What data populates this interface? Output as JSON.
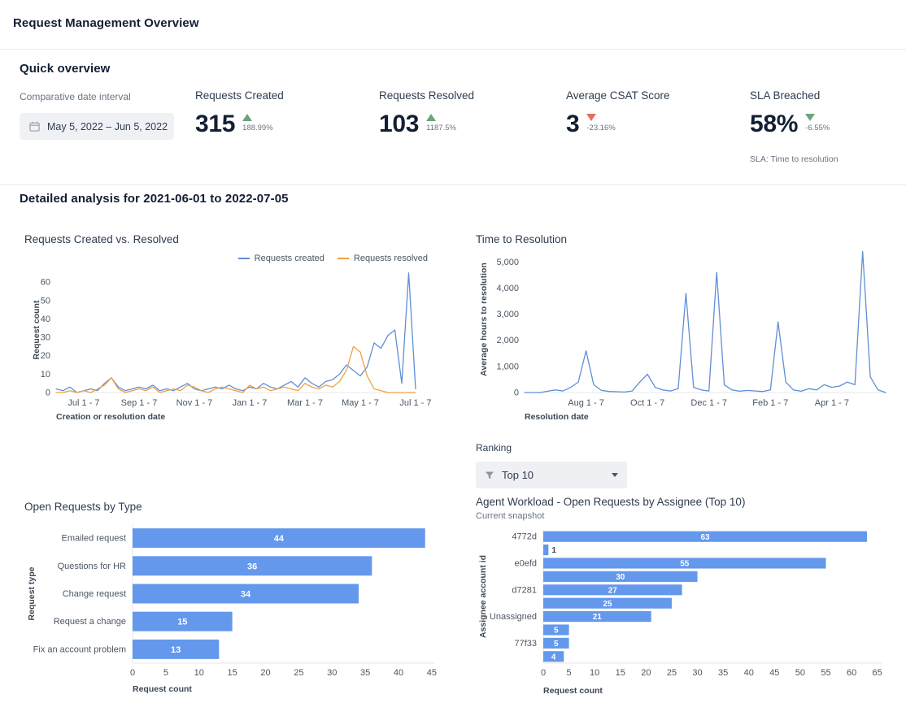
{
  "page": {
    "title": "Request Management Overview"
  },
  "quick_overview": {
    "heading": "Quick overview",
    "date_interval": {
      "label": "Comparative date interval",
      "value": "May 5, 2022  –  Jun 5, 2022"
    },
    "kpis": [
      {
        "label": "Requests Created",
        "value": "315",
        "delta": "188.99%",
        "direction": "up",
        "tone": "positive"
      },
      {
        "label": "Requests Resolved",
        "value": "103",
        "delta": "1187.5%",
        "direction": "up",
        "tone": "positive"
      },
      {
        "label": "Average CSAT Score",
        "value": "3",
        "delta": "-23.16%",
        "direction": "down",
        "tone": "negative"
      },
      {
        "label": "SLA Breached",
        "value": "58%",
        "delta": "-6.55%",
        "direction": "down",
        "tone": "positive",
        "footnote": "SLA: Time to resolution"
      }
    ]
  },
  "detailed": {
    "heading": "Detailed analysis for 2021-06-01 to 2022-07-05"
  },
  "ranking": {
    "label": "Ranking",
    "dropdown_value": "Top 10"
  },
  "colors": {
    "series_blue": "#5f8fd6",
    "series_orange": "#f0a143",
    "bar_blue": "#6398ec",
    "positive_green": "#6ba57b",
    "negative_red": "#e2705c"
  },
  "chart_data": [
    {
      "type": "line",
      "title": "Requests Created vs. Resolved",
      "xlabel": "Creation or resolution date",
      "ylabel": "Request count",
      "ylim": [
        0,
        68
      ],
      "yticks": [
        0,
        10,
        20,
        30,
        40,
        50,
        60
      ],
      "xticks": [
        {
          "i": 4,
          "label": "Jul 1 - 7"
        },
        {
          "i": 12,
          "label": "Sep 1 - 7"
        },
        {
          "i": 20,
          "label": "Nov 1 - 7"
        },
        {
          "i": 28,
          "label": "Jan 1 - 7"
        },
        {
          "i": 36,
          "label": "Mar 1 - 7"
        },
        {
          "i": 44,
          "label": "May 1 - 7"
        },
        {
          "i": 52,
          "label": "Jul 1 - 7"
        }
      ],
      "legend_position": "top-right",
      "grid": false,
      "series": [
        {
          "name": "Requests created",
          "color": "#5f8fd6",
          "values": [
            2,
            1,
            3,
            0,
            1,
            2,
            1,
            5,
            8,
            3,
            1,
            2,
            3,
            2,
            4,
            1,
            2,
            1,
            3,
            5,
            2,
            1,
            2,
            3,
            2,
            4,
            2,
            1,
            3,
            2,
            5,
            3,
            2,
            4,
            6,
            3,
            8,
            5,
            3,
            6,
            7,
            10,
            15,
            12,
            9,
            14,
            27,
            24,
            31,
            34,
            5,
            65,
            2
          ]
        },
        {
          "name": "Requests resolved",
          "color": "#f0a143",
          "values": [
            0,
            0,
            1,
            0,
            1,
            0,
            2,
            4,
            8,
            2,
            0,
            1,
            2,
            1,
            3,
            0,
            1,
            2,
            1,
            4,
            3,
            1,
            0,
            2,
            3,
            2,
            1,
            0,
            4,
            2,
            3,
            1,
            2,
            3,
            2,
            1,
            5,
            3,
            2,
            4,
            3,
            6,
            12,
            25,
            22,
            9,
            2,
            1,
            0,
            0,
            0,
            0,
            0
          ]
        }
      ]
    },
    {
      "type": "line",
      "title": "Time to Resolution",
      "xlabel": "Resolution date",
      "ylabel": "Average hours to resolution",
      "ylim": [
        0,
        5600
      ],
      "yticks": [
        0,
        1000,
        2000,
        3000,
        4000,
        5000
      ],
      "xticks": [
        {
          "i": 8,
          "label": "Aug 1 - 7"
        },
        {
          "i": 16,
          "label": "Oct 1 - 7"
        },
        {
          "i": 24,
          "label": "Dec 1 - 7"
        },
        {
          "i": 32,
          "label": "Feb 1 - 7"
        },
        {
          "i": 40,
          "label": "Apr 1 - 7"
        }
      ],
      "grid": false,
      "series": [
        {
          "name": "Average hours to resolution",
          "color": "#5f8fd6",
          "values": [
            0,
            0,
            0,
            50,
            100,
            60,
            200,
            400,
            1600,
            300,
            80,
            40,
            30,
            20,
            60,
            400,
            700,
            200,
            100,
            60,
            150,
            3800,
            200,
            100,
            60,
            4600,
            300,
            100,
            50,
            80,
            60,
            40,
            100,
            2700,
            400,
            100,
            50,
            150,
            100,
            300,
            200,
            250,
            400,
            300,
            5400,
            600,
            100,
            0
          ]
        }
      ]
    },
    {
      "type": "hbar",
      "title": "Open Requests by Type",
      "xlabel": "Request count",
      "ylabel": "Request type",
      "categories": [
        "Emailed request",
        "Questions for HR",
        "Change request",
        "Request a change",
        "Fix an account problem"
      ],
      "values": [
        44,
        36,
        34,
        15,
        13
      ],
      "xlim": [
        0,
        45.5
      ],
      "xticks": [
        0,
        5,
        10,
        15,
        20,
        25,
        30,
        35,
        40,
        45
      ],
      "bar_color": "#6398ec",
      "value_labels": true
    },
    {
      "type": "hbar",
      "title": "Agent Workload - Open Requests by Assignee (Top 10)",
      "subtitle": "Current snapshot",
      "xlabel": "Request count",
      "ylabel": "Assignee account id",
      "categories": [
        "4772d",
        "",
        "e0efd",
        "",
        "d7281",
        "",
        "Unassigned",
        "",
        "77f33",
        ""
      ],
      "values": [
        63,
        1,
        55,
        30,
        27,
        25,
        21,
        5,
        5,
        4
      ],
      "xlim": [
        0,
        66
      ],
      "xticks": [
        0,
        5,
        10,
        15,
        20,
        25,
        30,
        35,
        40,
        45,
        50,
        55,
        60,
        65
      ],
      "bar_color": "#6398ec",
      "value_labels": true
    }
  ]
}
